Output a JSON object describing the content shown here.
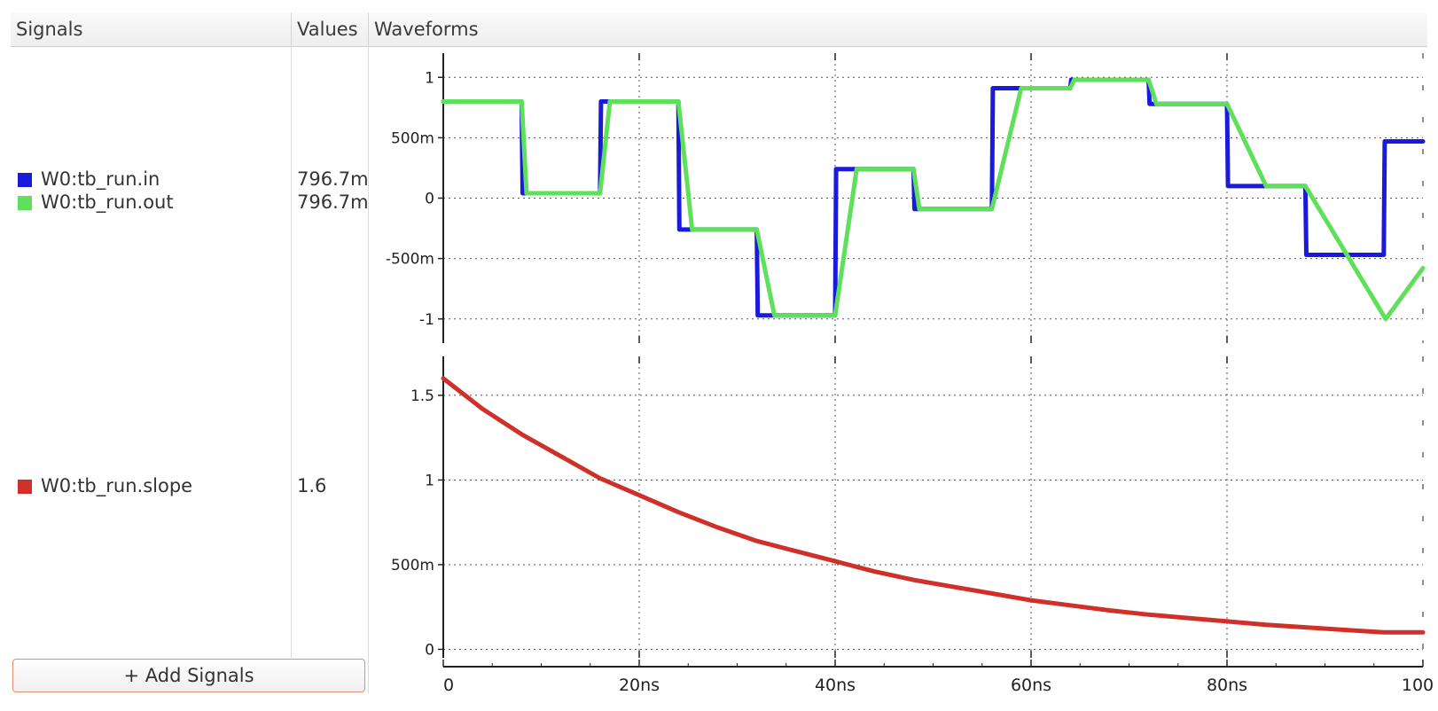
{
  "header": {
    "signals": "Signals",
    "values": "Values",
    "waveforms": "Waveforms"
  },
  "signals": [
    {
      "name": "W0:tb_run.in",
      "value": "796.7m",
      "color": "#1a1adc"
    },
    {
      "name": "W0:tb_run.out",
      "value": "796.7m",
      "color": "#5ee05a"
    },
    {
      "name": "W0:tb_run.slope",
      "value": "1.6",
      "color": "#d0302a"
    }
  ],
  "add_button": {
    "label": "+ Add Signals"
  },
  "chart_data": [
    {
      "type": "line",
      "ylim": [
        -1.2,
        1.2
      ],
      "xlim": [
        0,
        100
      ],
      "yticks": [
        {
          "v": 1,
          "label": "1"
        },
        {
          "v": 0.5,
          "label": "500m"
        },
        {
          "v": 0,
          "label": "0"
        },
        {
          "v": -0.5,
          "label": "-500m"
        },
        {
          "v": -1,
          "label": "-1"
        }
      ],
      "series": [
        {
          "name": "W0:tb_run.in",
          "color": "#1a1adc",
          "x": [
            0,
            8,
            8.1,
            16,
            16.1,
            24,
            24.1,
            32,
            32.1,
            40,
            40.1,
            48,
            48.1,
            56,
            56.1,
            64,
            64.1,
            72,
            72.1,
            80,
            80.1,
            88,
            88.1,
            96,
            96.1,
            100
          ],
          "y": [
            0.8,
            0.8,
            0.04,
            0.04,
            0.8,
            0.8,
            -0.26,
            -0.26,
            -0.97,
            -0.97,
            0.24,
            0.24,
            -0.09,
            -0.09,
            0.91,
            0.91,
            0.98,
            0.98,
            0.78,
            0.78,
            0.1,
            0.1,
            -0.47,
            -0.47,
            0.47,
            0.47
          ]
        },
        {
          "name": "W0:tb_run.out",
          "color": "#5ee05a",
          "x": [
            0,
            8,
            8.5,
            16,
            17,
            24,
            25.4,
            32,
            33.8,
            40,
            42.2,
            48,
            48.6,
            56,
            59,
            64,
            64.4,
            72,
            72.8,
            80,
            84,
            88,
            96.2,
            100
          ],
          "y": [
            0.8,
            0.8,
            0.04,
            0.04,
            0.8,
            0.8,
            -0.26,
            -0.26,
            -0.97,
            -0.97,
            0.24,
            0.24,
            -0.09,
            -0.09,
            0.91,
            0.91,
            0.98,
            0.98,
            0.78,
            0.78,
            0.1,
            0.1,
            -1.0,
            -0.58
          ]
        }
      ]
    },
    {
      "type": "line",
      "ylim": [
        -0.05,
        1.73
      ],
      "xlim": [
        0,
        100
      ],
      "yticks": [
        {
          "v": 1.5,
          "label": "1.5"
        },
        {
          "v": 1,
          "label": "1"
        },
        {
          "v": 0.5,
          "label": "500m"
        },
        {
          "v": 0,
          "label": "0"
        }
      ],
      "series": [
        {
          "name": "W0:tb_run.slope",
          "color": "#d0302a",
          "x": [
            0,
            4,
            8,
            12,
            16,
            20,
            24,
            28,
            32,
            36,
            40,
            44,
            48,
            52,
            56,
            60,
            64,
            68,
            72,
            76,
            80,
            84,
            88,
            92,
            96,
            100
          ],
          "y": [
            1.6,
            1.42,
            1.27,
            1.14,
            1.01,
            0.91,
            0.81,
            0.72,
            0.64,
            0.58,
            0.52,
            0.46,
            0.41,
            0.37,
            0.33,
            0.29,
            0.26,
            0.23,
            0.205,
            0.185,
            0.165,
            0.145,
            0.13,
            0.115,
            0.1,
            0.1
          ]
        }
      ]
    }
  ],
  "xaxis": {
    "ticks": [
      {
        "v": 0,
        "label": "0"
      },
      {
        "v": 20,
        "label": "20ns"
      },
      {
        "v": 40,
        "label": "40ns"
      },
      {
        "v": 60,
        "label": "60ns"
      },
      {
        "v": 80,
        "label": "80ns"
      },
      {
        "v": 100,
        "label": "100"
      }
    ]
  }
}
